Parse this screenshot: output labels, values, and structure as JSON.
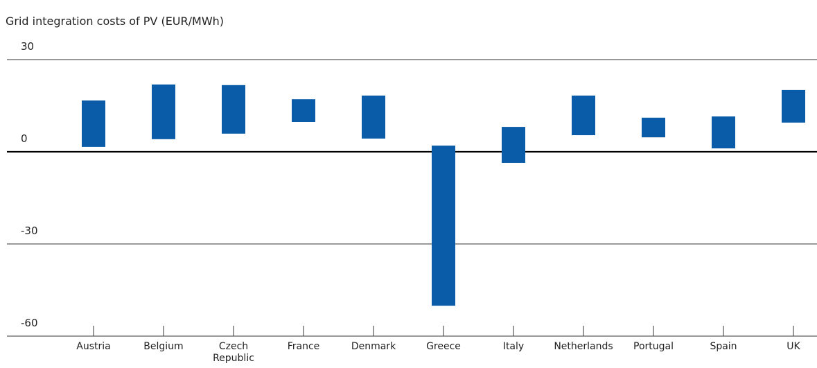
{
  "chart_data": {
    "type": "range_bar",
    "title": "Grid integration costs of PV (EUR/MWh)",
    "categories": [
      "Austria",
      "Belgium",
      "Czech Republic",
      "France",
      "Denmark",
      "Greece",
      "Italy",
      "Netherlands",
      "Portugal",
      "Spain",
      "UK"
    ],
    "low": [
      1.6,
      4.1,
      5.9,
      9.7,
      4.3,
      -50.1,
      -3.6,
      5.4,
      4.7,
      1.1,
      9.5
    ],
    "high": [
      16.7,
      21.9,
      21.7,
      17.1,
      18.3,
      2.0,
      8.1,
      18.3,
      11.1,
      11.5,
      20.1
    ],
    "color": "#0a5ca8",
    "ylim": [
      -60,
      30
    ],
    "yticks": [
      -60,
      -30,
      0,
      30
    ],
    "grid": true
  }
}
